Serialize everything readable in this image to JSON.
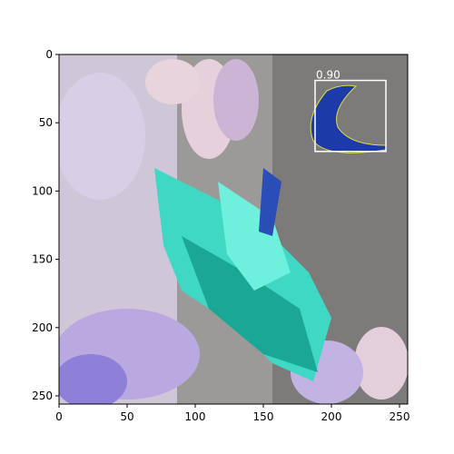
{
  "chart_data": {
    "type": "image",
    "xlim": [
      0,
      256
    ],
    "ylim": [
      256,
      0
    ],
    "xticks": [
      0,
      50,
      100,
      150,
      200,
      250
    ],
    "yticks": [
      0,
      50,
      100,
      150,
      200,
      250
    ],
    "boxes": [
      {
        "label": "0.90",
        "x0": 188,
        "y0": 19,
        "x1": 240,
        "y1": 71,
        "color": "#ffffff"
      }
    ]
  }
}
